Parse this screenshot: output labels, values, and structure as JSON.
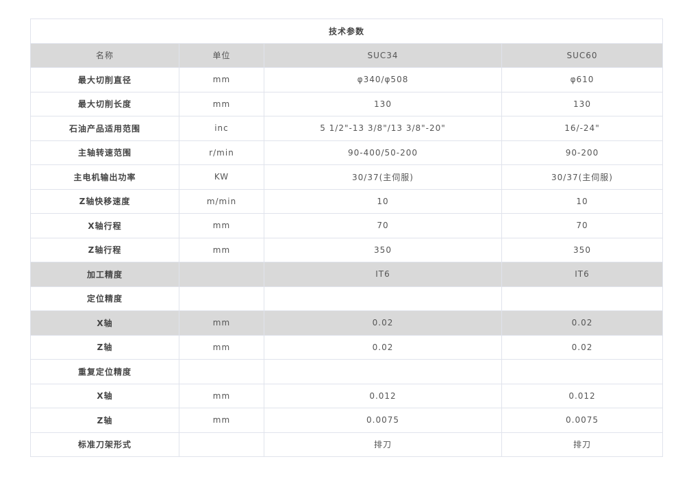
{
  "table": {
    "title": "技术参数",
    "headers": [
      "名称",
      "单位",
      "SUC34",
      "SUC60"
    ],
    "rows": [
      {
        "name": "最大切削直径",
        "unit": "mm",
        "suc34": "φ340/φ508",
        "suc60": "φ610",
        "grey": false
      },
      {
        "name": "最大切削长度",
        "unit": "mm",
        "suc34": "130",
        "suc60": "130",
        "grey": false
      },
      {
        "name": "石油产品适用范围",
        "unit": "inc",
        "suc34": "5 1/2\"-13 3/8\"/13 3/8\"-20\"",
        "suc60": "16/-24\"",
        "grey": false
      },
      {
        "name": "主轴转速范围",
        "unit": "r/min",
        "suc34": "90-400/50-200",
        "suc60": "90-200",
        "grey": false
      },
      {
        "name": "主电机输出功率",
        "unit": "KW",
        "suc34": "30/37(主伺服)",
        "suc60": "30/37(主伺服)",
        "grey": false
      },
      {
        "name": "Z轴快移速度",
        "unit": "m/min",
        "suc34": "10",
        "suc60": "10",
        "grey": false
      },
      {
        "name": "X轴行程",
        "unit": "mm",
        "suc34": "70",
        "suc60": "70",
        "grey": false
      },
      {
        "name": "Z轴行程",
        "unit": "mm",
        "suc34": "350",
        "suc60": "350",
        "grey": false
      },
      {
        "name": "加工精度",
        "unit": "",
        "suc34": "IT6",
        "suc60": "IT6",
        "grey": true
      },
      {
        "name": "定位精度",
        "unit": "",
        "suc34": "",
        "suc60": "",
        "grey": false
      },
      {
        "name": "X轴",
        "unit": "mm",
        "suc34": "0.02",
        "suc60": "0.02",
        "grey": true
      },
      {
        "name": "Z轴",
        "unit": "mm",
        "suc34": "0.02",
        "suc60": "0.02",
        "grey": false
      },
      {
        "name": "重复定位精度",
        "unit": "",
        "suc34": "",
        "suc60": "",
        "grey": false
      },
      {
        "name": "X轴",
        "unit": "mm",
        "suc34": "0.012",
        "suc60": "0.012",
        "grey": false
      },
      {
        "name": "Z轴",
        "unit": "mm",
        "suc34": "0.0075",
        "suc60": "0.0075",
        "grey": false
      },
      {
        "name": "标准刀架形式",
        "unit": "",
        "suc34": "排刀",
        "suc60": "排刀",
        "grey": false
      }
    ]
  },
  "colors": {
    "grey_row": "#d9d9d9",
    "border": "#e0e3ec",
    "text": "#555555"
  }
}
